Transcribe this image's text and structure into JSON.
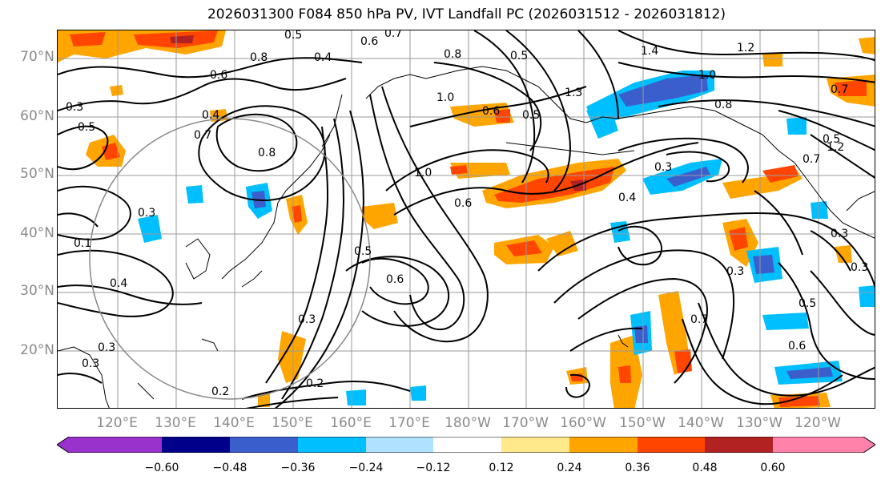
{
  "title": "2026031300 F084 850 hPa PV, IVT Landfall PC (2026031512 - 2026031812)",
  "lat_labels": [
    "70°N",
    "60°N",
    "50°N",
    "40°N",
    "30°N",
    "20°N"
  ],
  "lon_labels": [
    "120°E",
    "130°E",
    "140°E",
    "150°E",
    "160°E",
    "170°E",
    "180°W",
    "170°W",
    "160°W",
    "150°W",
    "140°W",
    "130°W",
    "120°W"
  ],
  "colorbar": {
    "ticks": [
      "−0.60",
      "−0.48",
      "−0.36",
      "−0.24",
      "−0.12",
      "0.12",
      "0.24",
      "0.36",
      "0.48",
      "0.60"
    ],
    "colors": [
      "#9932CC",
      "#00008B",
      "#3A5FCD",
      "#00BFFF",
      "#B0E2FF",
      "#FFFFFF",
      "#FFE98A",
      "#FFA500",
      "#FF4500",
      "#B22222",
      "#FF82AB"
    ]
  },
  "contour_labels": [
    "0.5",
    "0.6",
    "0.7",
    "0.8",
    "0.4",
    "0.8",
    "0.5",
    "1.4",
    "1.2",
    "1.0",
    "0.7",
    "0.6",
    "0.7",
    "0.5",
    "1.0",
    "0.5",
    "1.3",
    "0.8",
    "1.2",
    "0.7",
    "0.4",
    "0.8",
    "0.6",
    "1.0",
    "0.3",
    "0.4",
    "0.6",
    "0.3",
    "0.5",
    "0.6",
    "0.3",
    "0.4",
    "0.3",
    "0.2",
    "0.2",
    "0.3",
    "0.3",
    "0.5",
    "0.7",
    "0.3",
    "0.3",
    "0.6",
    "0.1",
    "0.3",
    "0.5"
  ]
}
